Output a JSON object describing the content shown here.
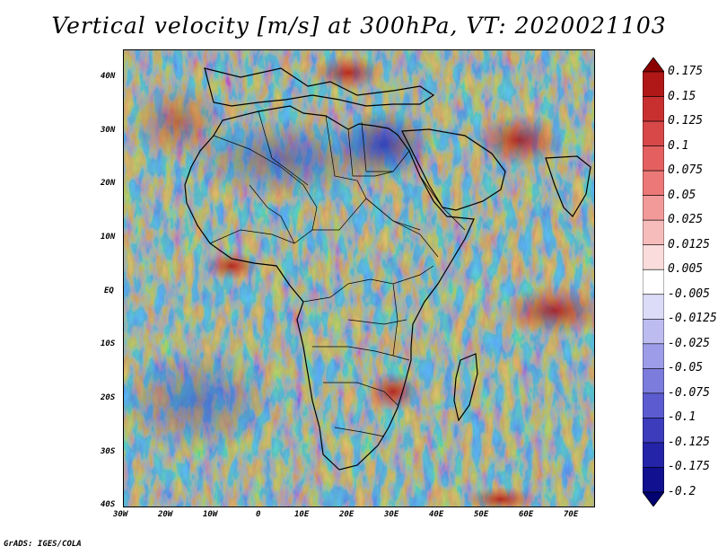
{
  "title": "Vertical velocity [m/s] at 300hPa, VT: 2020021103",
  "credit": "GrADS: IGES/COLA",
  "map": {
    "region": "Africa",
    "variable": "Vertical velocity",
    "units": "m/s",
    "level": "300hPa",
    "valid_time": "2020021103",
    "lon_range": [
      -30,
      75
    ],
    "lat_range": [
      -40,
      45
    ],
    "lat_labels": [
      "40N",
      "30N",
      "20N",
      "10N",
      "EQ",
      "10S",
      "20S",
      "30S",
      "40S"
    ],
    "lon_labels": [
      "30W",
      "20W",
      "10W",
      "0",
      "10E",
      "20E",
      "30E",
      "40E",
      "50E",
      "60E",
      "70E"
    ]
  },
  "colorbar": {
    "labels": [
      "0.175",
      "0.15",
      "0.125",
      "0.1",
      "0.075",
      "0.05",
      "0.025",
      "0.0125",
      "0.005",
      "-0.005",
      "-0.0125",
      "-0.025",
      "-0.05",
      "-0.075",
      "-0.1",
      "-0.125",
      "-0.175",
      "-0.2"
    ],
    "colors": [
      "#8b0000",
      "#b01818",
      "#c83030",
      "#d84848",
      "#e46060",
      "#ec7878",
      "#f29a9a",
      "#f6bcbc",
      "#fadcdc",
      "#ffffff",
      "#dcdcf8",
      "#bcbcf0",
      "#9c9ce8",
      "#7c7cdc",
      "#5c5cd0",
      "#3c3cbc",
      "#2424a8",
      "#101090",
      "#000070"
    ]
  }
}
